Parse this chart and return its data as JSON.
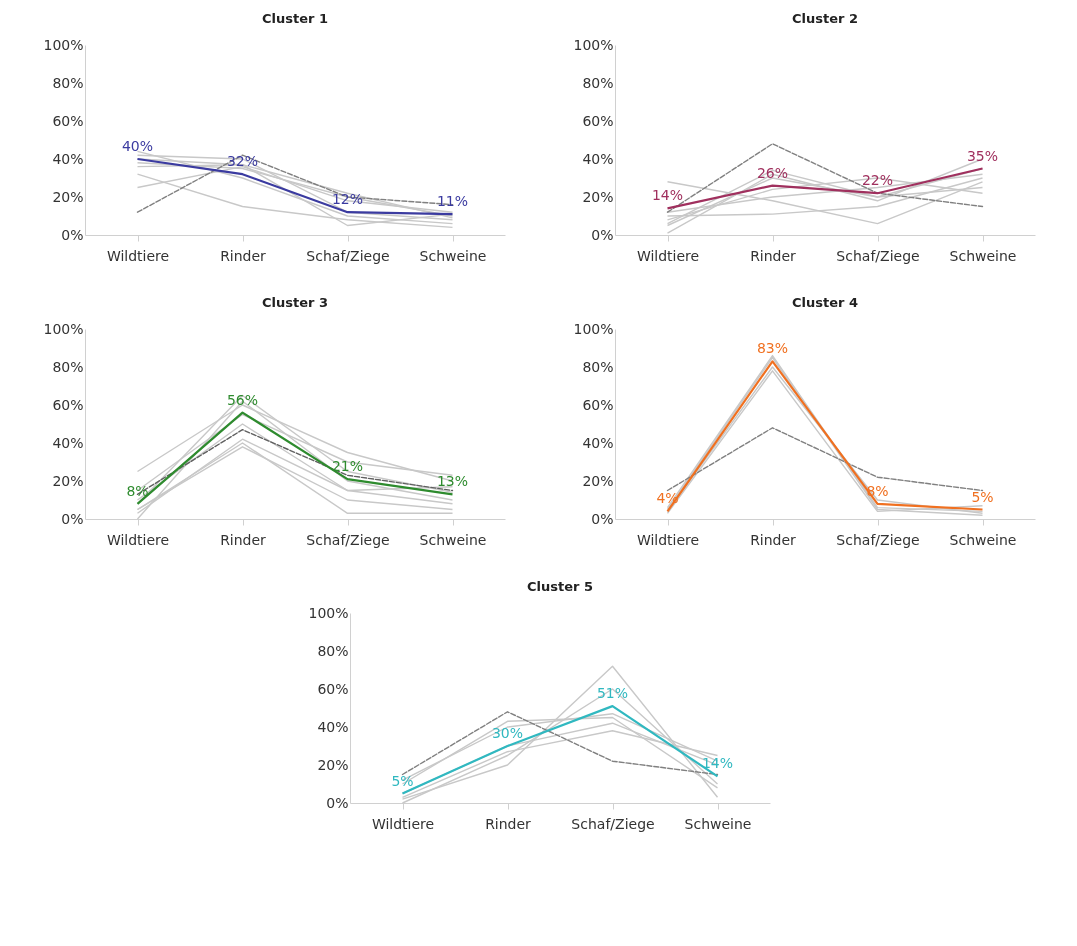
{
  "chart_data": [
    {
      "type": "line",
      "title": "Cluster 1",
      "categories": [
        "Wildtiere",
        "Rinder",
        "Schaf/Ziege",
        "Schweine"
      ],
      "ylim": [
        0,
        100
      ],
      "yticks": [
        {
          "value": 0,
          "label": "0%"
        },
        {
          "value": 20,
          "label": "20%"
        },
        {
          "value": 40,
          "label": "40%"
        },
        {
          "value": 60,
          "label": "60%"
        },
        {
          "value": 80,
          "label": "80%"
        },
        {
          "value": 100,
          "label": "100%"
        }
      ],
      "grid": false,
      "marker": "none",
      "series": [
        {
          "color": "#c8c8c8",
          "values": [
            38,
            35,
            20,
            10
          ]
        },
        {
          "color": "#c8c8c8",
          "values": [
            42,
            40,
            12,
            8
          ]
        },
        {
          "color": "#c8c8c8",
          "values": [
            36,
            37,
            5,
            11
          ]
        },
        {
          "color": "#c8c8c8",
          "values": [
            25,
            36,
            18,
            12
          ]
        },
        {
          "color": "#c8c8c8",
          "values": [
            44,
            30,
            10,
            6
          ]
        },
        {
          "color": "#c8c8c8",
          "values": [
            32,
            15,
            8,
            4
          ]
        },
        {
          "color": "#c8c8c8",
          "values": [
            40,
            37,
            22,
            9
          ]
        },
        {
          "color": "#808080",
          "line_style": "dashed",
          "values": [
            12,
            42,
            20,
            16
          ]
        },
        {
          "color": "#3b3ba0",
          "values": [
            40,
            32,
            12,
            11
          ],
          "value_labels": [
            "40%",
            "32%",
            "12%",
            "11%"
          ]
        }
      ]
    },
    {
      "type": "line",
      "title": "Cluster 2",
      "categories": [
        "Wildtiere",
        "Rinder",
        "Schaf/Ziege",
        "Schweine"
      ],
      "ylim": [
        0,
        100
      ],
      "yticks": [
        {
          "value": 0,
          "label": "0%"
        },
        {
          "value": 20,
          "label": "20%"
        },
        {
          "value": 40,
          "label": "40%"
        },
        {
          "value": 60,
          "label": "60%"
        },
        {
          "value": 80,
          "label": "80%"
        },
        {
          "value": 100,
          "label": "100%"
        }
      ],
      "grid": false,
      "marker": "none",
      "series": [
        {
          "color": "#c8c8c8",
          "values": [
            5,
            30,
            20,
            35
          ]
        },
        {
          "color": "#c8c8c8",
          "values": [
            1,
            32,
            18,
            40
          ]
        },
        {
          "color": "#c8c8c8",
          "values": [
            10,
            11,
            15,
            30
          ]
        },
        {
          "color": "#c8c8c8",
          "values": [
            28,
            18,
            6,
            28
          ]
        },
        {
          "color": "#c8c8c8",
          "values": [
            8,
            24,
            30,
            22
          ]
        },
        {
          "color": "#c8c8c8",
          "values": [
            12,
            20,
            25,
            32
          ]
        },
        {
          "color": "#c8c8c8",
          "values": [
            6,
            34,
            20,
            25
          ]
        },
        {
          "color": "#808080",
          "line_style": "dashed",
          "values": [
            12,
            48,
            22,
            15
          ]
        },
        {
          "color": "#a0305e",
          "values": [
            14,
            26,
            22,
            35
          ],
          "value_labels": [
            "14%",
            "26%",
            "22%",
            "35%"
          ]
        }
      ]
    },
    {
      "type": "line",
      "title": "Cluster 3",
      "categories": [
        "Wildtiere",
        "Rinder",
        "Schaf/Ziege",
        "Schweine"
      ],
      "ylim": [
        0,
        100
      ],
      "yticks": [
        {
          "value": 0,
          "label": "0%"
        },
        {
          "value": 20,
          "label": "20%"
        },
        {
          "value": 40,
          "label": "40%"
        },
        {
          "value": 60,
          "label": "60%"
        },
        {
          "value": 80,
          "label": "80%"
        },
        {
          "value": 100,
          "label": "100%"
        }
      ],
      "grid": false,
      "marker": "none",
      "series": [
        {
          "color": "#c8c8c8",
          "values": [
            25,
            60,
            35,
            20
          ]
        },
        {
          "color": "#c8c8c8",
          "values": [
            0,
            62,
            20,
            10
          ]
        },
        {
          "color": "#c8c8c8",
          "values": [
            5,
            40,
            3,
            3
          ]
        },
        {
          "color": "#c8c8c8",
          "values": [
            10,
            50,
            15,
            17
          ]
        },
        {
          "color": "#c8c8c8",
          "values": [
            15,
            55,
            30,
            23
          ]
        },
        {
          "color": "#c8c8c8",
          "values": [
            3,
            42,
            15,
            8
          ]
        },
        {
          "color": "#c8c8c8",
          "values": [
            8,
            65,
            25,
            14
          ]
        },
        {
          "color": "#c8c8c8",
          "values": [
            5,
            38,
            10,
            5
          ]
        },
        {
          "color": "#606060",
          "line_style": "dashed",
          "values": [
            13,
            47,
            23,
            15
          ]
        },
        {
          "color": "#2e8b2e",
          "values": [
            8,
            56,
            21,
            13
          ],
          "value_labels": [
            "8%",
            "56%",
            "21%",
            "13%"
          ]
        }
      ]
    },
    {
      "type": "line",
      "title": "Cluster 4",
      "categories": [
        "Wildtiere",
        "Rinder",
        "Schaf/Ziege",
        "Schweine"
      ],
      "ylim": [
        0,
        100
      ],
      "yticks": [
        {
          "value": 0,
          "label": "0%"
        },
        {
          "value": 20,
          "label": "20%"
        },
        {
          "value": 40,
          "label": "40%"
        },
        {
          "value": 60,
          "label": "60%"
        },
        {
          "value": 80,
          "label": "80%"
        },
        {
          "value": 100,
          "label": "100%"
        }
      ],
      "grid": false,
      "marker": "none",
      "series": [
        {
          "color": "#c8c8c8",
          "values": [
            5,
            85,
            5,
            2
          ]
        },
        {
          "color": "#c8c8c8",
          "values": [
            3,
            78,
            4,
            7
          ]
        },
        {
          "color": "#c8c8c8",
          "values": [
            4,
            80,
            10,
            3
          ]
        },
        {
          "color": "#c8c8c8",
          "values": [
            6,
            86,
            6,
            4
          ]
        },
        {
          "color": "#808080",
          "line_style": "dashed",
          "values": [
            15,
            48,
            22,
            15
          ]
        },
        {
          "color": "#f07020",
          "values": [
            4,
            83,
            8,
            5
          ],
          "value_labels": [
            "4%",
            "83%",
            "8%",
            "5%"
          ]
        }
      ]
    },
    {
      "type": "line",
      "title": "Cluster 5",
      "categories": [
        "Wildtiere",
        "Rinder",
        "Schaf/Ziege",
        "Schweine"
      ],
      "ylim": [
        0,
        100
      ],
      "yticks": [
        {
          "value": 0,
          "label": "0%"
        },
        {
          "value": 20,
          "label": "20%"
        },
        {
          "value": 40,
          "label": "40%"
        },
        {
          "value": 60,
          "label": "60%"
        },
        {
          "value": 80,
          "label": "80%"
        },
        {
          "value": 100,
          "label": "100%"
        }
      ],
      "grid": false,
      "marker": "none",
      "series": [
        {
          "color": "#c8c8c8",
          "values": [
            10,
            43,
            45,
            8
          ]
        },
        {
          "color": "#c8c8c8",
          "values": [
            2,
            20,
            72,
            3
          ]
        },
        {
          "color": "#c8c8c8",
          "values": [
            3,
            27,
            38,
            25
          ]
        },
        {
          "color": "#c8c8c8",
          "values": [
            12,
            40,
            47,
            22
          ]
        },
        {
          "color": "#c8c8c8",
          "values": [
            0,
            25,
            60,
            10
          ]
        },
        {
          "color": "#c8c8c8",
          "values": [
            5,
            30,
            42,
            20
          ]
        },
        {
          "color": "#808080",
          "line_style": "dashed",
          "values": [
            15,
            48,
            22,
            15
          ]
        },
        {
          "color": "#30b8c0",
          "values": [
            5,
            30,
            51,
            14
          ],
          "value_labels": [
            "5%",
            "30%",
            "51%",
            "14%"
          ]
        }
      ]
    }
  ]
}
